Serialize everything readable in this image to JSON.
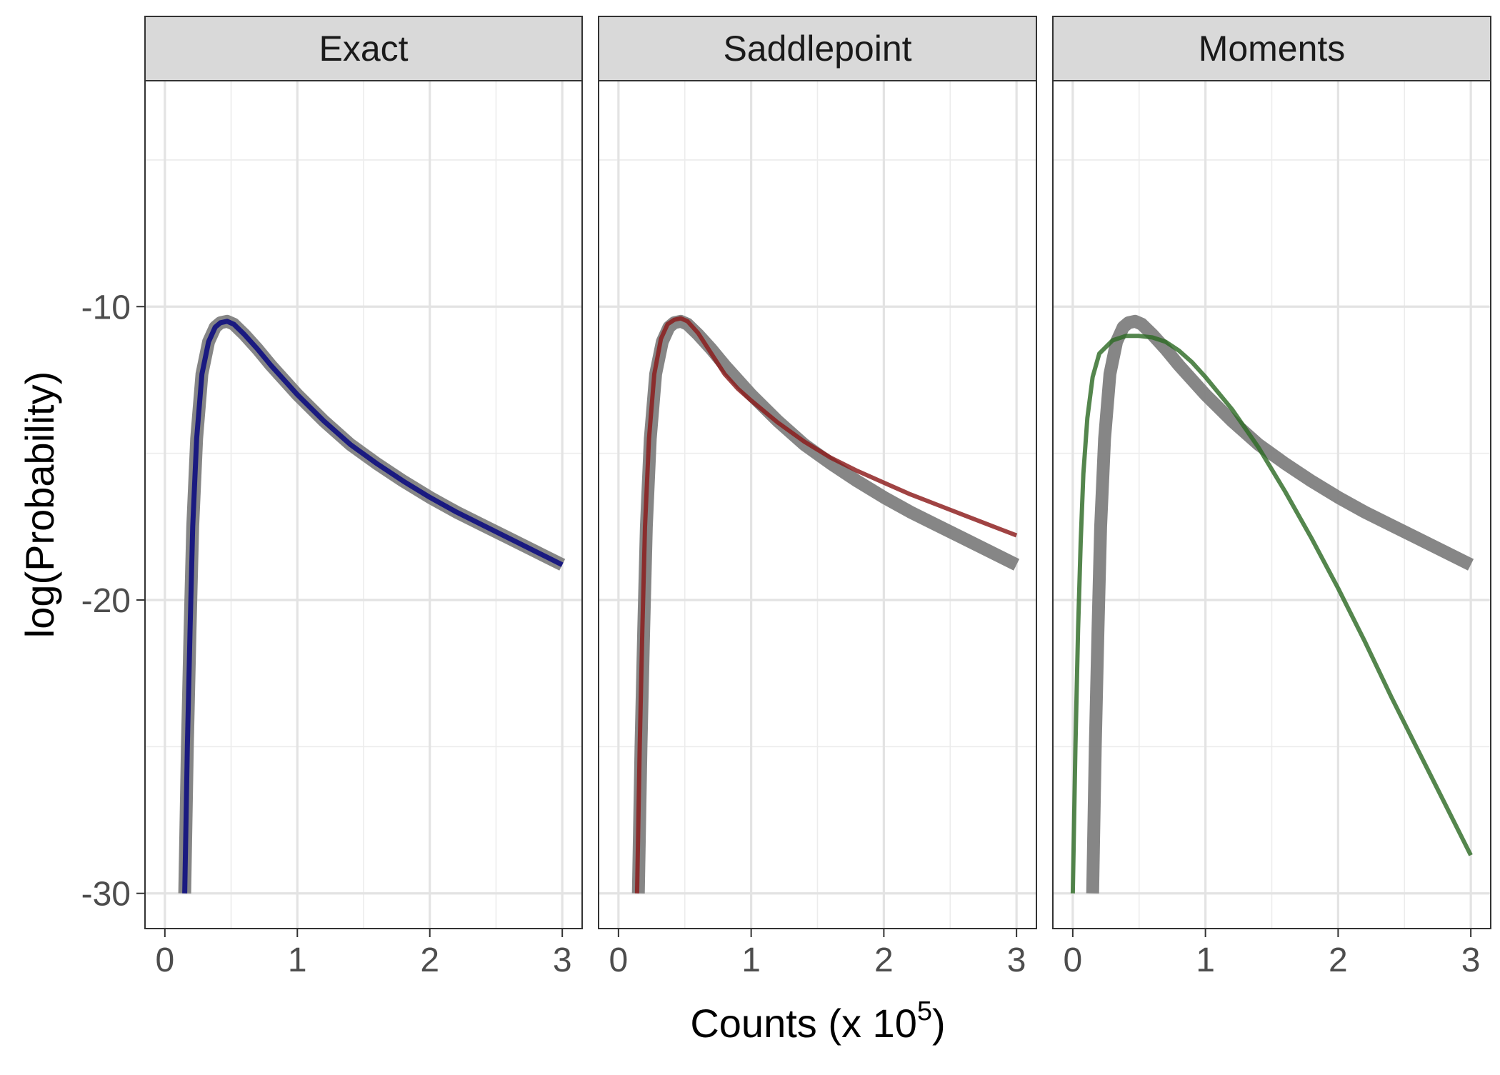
{
  "chart_data": {
    "type": "line",
    "layout": "faceted",
    "xlabel_main": "Counts (x 10",
    "xlabel_exponent": "5",
    "xlabel_close": ")",
    "ylabel": "log(Probability)",
    "xlim": [
      -0.15,
      3.15
    ],
    "ylim": [
      -31.2,
      -2.3
    ],
    "x_ticks": [
      0,
      1,
      2,
      3
    ],
    "x_tick_labels": [
      "0",
      "1",
      "2",
      "3"
    ],
    "y_ticks": [
      -10,
      -20,
      -30
    ],
    "y_tick_labels": [
      "-10",
      "-20",
      "-30"
    ],
    "grid": true,
    "legend": "none",
    "reference_series": {
      "color": "#7f7f7f",
      "points": [
        [
          0.15,
          -30
        ],
        [
          0.17,
          -25
        ],
        [
          0.19,
          -21
        ],
        [
          0.21,
          -17.5
        ],
        [
          0.24,
          -14.5
        ],
        [
          0.28,
          -12.3
        ],
        [
          0.33,
          -11.2
        ],
        [
          0.38,
          -10.7
        ],
        [
          0.42,
          -10.55
        ],
        [
          0.47,
          -10.5
        ],
        [
          0.52,
          -10.6
        ],
        [
          0.6,
          -10.95
        ],
        [
          0.7,
          -11.45
        ],
        [
          0.8,
          -12.0
        ],
        [
          0.9,
          -12.5
        ],
        [
          1.0,
          -13.0
        ],
        [
          1.2,
          -13.9
        ],
        [
          1.4,
          -14.7
        ],
        [
          1.6,
          -15.35
        ],
        [
          1.8,
          -15.95
        ],
        [
          2.0,
          -16.5
        ],
        [
          2.2,
          -17.0
        ],
        [
          2.4,
          -17.45
        ],
        [
          2.6,
          -17.9
        ],
        [
          2.8,
          -18.35
        ],
        [
          3.0,
          -18.8
        ]
      ]
    },
    "facets": [
      {
        "title": "Exact",
        "color": "#1a1a80",
        "points": [
          [
            0.15,
            -30
          ],
          [
            0.17,
            -25
          ],
          [
            0.19,
            -21
          ],
          [
            0.21,
            -17.5
          ],
          [
            0.24,
            -14.5
          ],
          [
            0.28,
            -12.3
          ],
          [
            0.33,
            -11.2
          ],
          [
            0.38,
            -10.7
          ],
          [
            0.42,
            -10.55
          ],
          [
            0.47,
            -10.5
          ],
          [
            0.52,
            -10.6
          ],
          [
            0.6,
            -10.95
          ],
          [
            0.7,
            -11.45
          ],
          [
            0.8,
            -12.0
          ],
          [
            0.9,
            -12.5
          ],
          [
            1.0,
            -13.0
          ],
          [
            1.2,
            -13.9
          ],
          [
            1.4,
            -14.7
          ],
          [
            1.6,
            -15.35
          ],
          [
            1.8,
            -15.95
          ],
          [
            2.0,
            -16.5
          ],
          [
            2.2,
            -17.0
          ],
          [
            2.4,
            -17.45
          ],
          [
            2.6,
            -17.9
          ],
          [
            2.8,
            -18.35
          ],
          [
            3.0,
            -18.8
          ]
        ]
      },
      {
        "title": "Saddlepoint",
        "color": "#8b1a1a",
        "points": [
          [
            0.14,
            -30
          ],
          [
            0.16,
            -25
          ],
          [
            0.18,
            -21
          ],
          [
            0.2,
            -17.5
          ],
          [
            0.23,
            -14.5
          ],
          [
            0.27,
            -12.3
          ],
          [
            0.32,
            -11.1
          ],
          [
            0.37,
            -10.6
          ],
          [
            0.42,
            -10.45
          ],
          [
            0.47,
            -10.4
          ],
          [
            0.52,
            -10.5
          ],
          [
            0.6,
            -10.9
          ],
          [
            0.7,
            -11.6
          ],
          [
            0.8,
            -12.3
          ],
          [
            0.9,
            -12.8
          ],
          [
            1.0,
            -13.2
          ],
          [
            1.2,
            -13.95
          ],
          [
            1.4,
            -14.6
          ],
          [
            1.6,
            -15.15
          ],
          [
            1.8,
            -15.6
          ],
          [
            2.0,
            -16.0
          ],
          [
            2.2,
            -16.4
          ],
          [
            2.4,
            -16.75
          ],
          [
            2.6,
            -17.1
          ],
          [
            2.8,
            -17.45
          ],
          [
            3.0,
            -17.8
          ]
        ]
      },
      {
        "title": "Moments",
        "color": "#2e6b26",
        "points": [
          [
            0.0,
            -30
          ],
          [
            0.02,
            -25
          ],
          [
            0.04,
            -21
          ],
          [
            0.06,
            -18
          ],
          [
            0.08,
            -15.7
          ],
          [
            0.11,
            -13.8
          ],
          [
            0.15,
            -12.4
          ],
          [
            0.2,
            -11.6
          ],
          [
            0.3,
            -11.15
          ],
          [
            0.4,
            -11.0
          ],
          [
            0.5,
            -11.0
          ],
          [
            0.6,
            -11.05
          ],
          [
            0.7,
            -11.2
          ],
          [
            0.8,
            -11.5
          ],
          [
            0.9,
            -11.9
          ],
          [
            1.0,
            -12.4
          ],
          [
            1.2,
            -13.5
          ],
          [
            1.4,
            -14.8
          ],
          [
            1.6,
            -16.3
          ],
          [
            1.8,
            -17.9
          ],
          [
            2.0,
            -19.6
          ],
          [
            2.2,
            -21.4
          ],
          [
            2.4,
            -23.3
          ],
          [
            2.6,
            -25.1
          ],
          [
            2.8,
            -26.9
          ],
          [
            3.0,
            -28.7
          ]
        ]
      }
    ]
  }
}
